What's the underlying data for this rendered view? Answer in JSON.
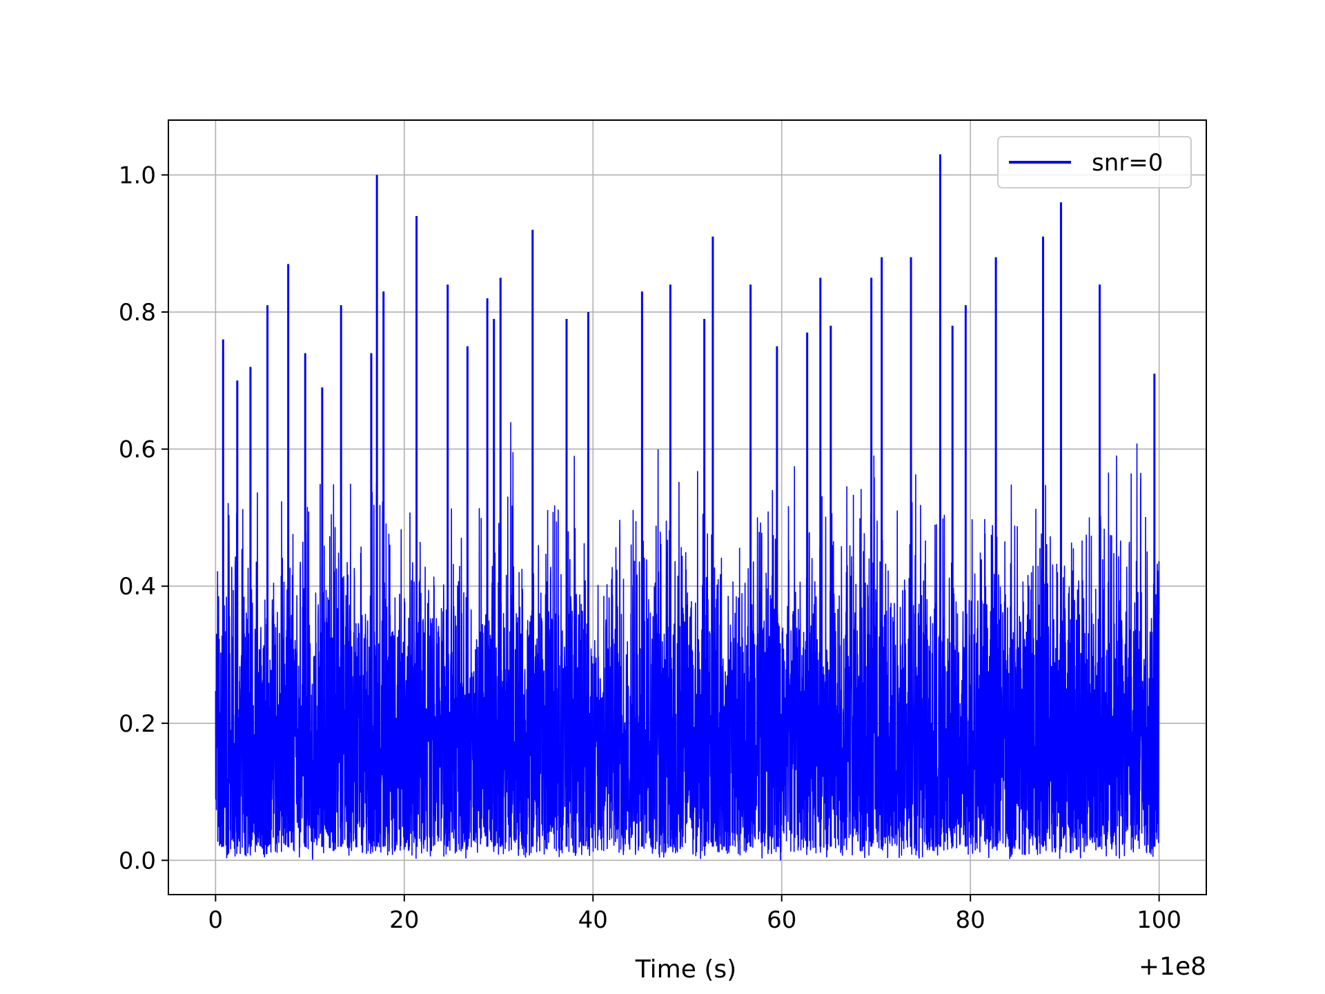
{
  "chart_data": {
    "type": "line",
    "title": "",
    "xlabel": "Time (s)",
    "ylabel": "",
    "x_offset_text": "+1e8",
    "xlim": [
      -5,
      105
    ],
    "ylim": [
      -0.05,
      1.08
    ],
    "xticks": [
      0,
      20,
      40,
      60,
      80,
      100
    ],
    "xtick_labels": [
      "0",
      "20",
      "40",
      "60",
      "80",
      "100"
    ],
    "yticks": [
      0.0,
      0.2,
      0.4,
      0.6,
      0.8,
      1.0
    ],
    "ytick_labels": [
      "0.0",
      "0.2",
      "0.4",
      "0.6",
      "0.8",
      "1.0"
    ],
    "grid": true,
    "legend_position": "top-right",
    "series": [
      {
        "name": "snr=0",
        "color": "#0000ff",
        "x_range": [
          0,
          100
        ],
        "value_range": [
          0.0,
          1.03
        ],
        "peaks": [
          {
            "x": 0.8,
            "y": 0.76
          },
          {
            "x": 2.3,
            "y": 0.7
          },
          {
            "x": 3.7,
            "y": 0.72
          },
          {
            "x": 5.5,
            "y": 0.81
          },
          {
            "x": 7.7,
            "y": 0.87
          },
          {
            "x": 9.5,
            "y": 0.74
          },
          {
            "x": 11.3,
            "y": 0.69
          },
          {
            "x": 13.3,
            "y": 0.81
          },
          {
            "x": 16.5,
            "y": 0.74
          },
          {
            "x": 17.1,
            "y": 1.0
          },
          {
            "x": 17.8,
            "y": 0.83
          },
          {
            "x": 21.3,
            "y": 0.94
          },
          {
            "x": 24.6,
            "y": 0.84
          },
          {
            "x": 26.7,
            "y": 0.75
          },
          {
            "x": 28.8,
            "y": 0.82
          },
          {
            "x": 29.5,
            "y": 0.79
          },
          {
            "x": 30.2,
            "y": 0.85
          },
          {
            "x": 33.6,
            "y": 0.92
          },
          {
            "x": 37.2,
            "y": 0.79
          },
          {
            "x": 39.5,
            "y": 0.8
          },
          {
            "x": 45.2,
            "y": 0.83
          },
          {
            "x": 48.2,
            "y": 0.84
          },
          {
            "x": 51.8,
            "y": 0.79
          },
          {
            "x": 52.7,
            "y": 0.91
          },
          {
            "x": 56.7,
            "y": 0.84
          },
          {
            "x": 59.5,
            "y": 0.75
          },
          {
            "x": 62.7,
            "y": 0.77
          },
          {
            "x": 64.1,
            "y": 0.85
          },
          {
            "x": 65.2,
            "y": 0.78
          },
          {
            "x": 69.5,
            "y": 0.85
          },
          {
            "x": 70.6,
            "y": 0.88
          },
          {
            "x": 73.7,
            "y": 0.88
          },
          {
            "x": 76.8,
            "y": 1.03
          },
          {
            "x": 78.1,
            "y": 0.78
          },
          {
            "x": 79.5,
            "y": 0.81
          },
          {
            "x": 82.7,
            "y": 0.88
          },
          {
            "x": 87.7,
            "y": 0.91
          },
          {
            "x": 89.6,
            "y": 0.96
          },
          {
            "x": 93.7,
            "y": 0.84
          },
          {
            "x": 99.5,
            "y": 0.71
          }
        ]
      }
    ]
  }
}
